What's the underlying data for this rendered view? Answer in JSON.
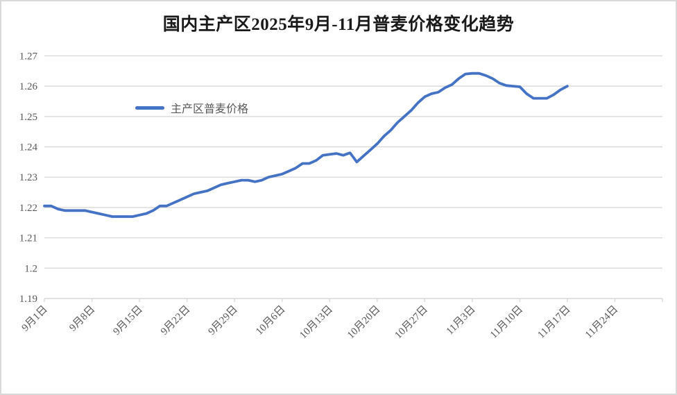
{
  "chart": {
    "title": "国内主产区2025年9月-11月普麦价格变化趋势",
    "legend_label": "主产区普麦价格"
  },
  "chart_data": {
    "type": "line",
    "title": "国内主产区2025年9月-11月普麦价格变化趋势",
    "xlabel": "",
    "ylabel": "",
    "ylim": [
      1.19,
      1.27
    ],
    "y_tick_labels": [
      "1.27",
      "1.26",
      "1.25",
      "1.24",
      "1.23",
      "1.22",
      "1.21",
      "1.2",
      "1.19"
    ],
    "x_tick_labels": [
      "9月1日",
      "9月8日",
      "9月15日",
      "9月22日",
      "9月29日",
      "10月6日",
      "10月13日",
      "10月20日",
      "10月27日",
      "11月3日",
      "11月10日",
      "11月17日",
      "11月24日"
    ],
    "x_tick_interval_days": 7,
    "grid": "horizontal",
    "legend_position": "inside-top-left",
    "colors": {
      "line": "#4472C4",
      "grid": "#d9d9d9",
      "axis": "#d9d9d9",
      "tick_text": "#595959",
      "title_text": "#1a1a1a",
      "border": "#d9d9d9"
    },
    "series": [
      {
        "name": "主产区普麦价格",
        "color": "#4472C4",
        "dates": [
          "9月1日",
          "9月2日",
          "9月3日",
          "9月4日",
          "9月5日",
          "9月6日",
          "9月7日",
          "9月8日",
          "9月9日",
          "9月10日",
          "9月11日",
          "9月12日",
          "9月13日",
          "9月14日",
          "9月15日",
          "9月16日",
          "9月17日",
          "9月18日",
          "9月19日",
          "9月20日",
          "9月21日",
          "9月22日",
          "9月23日",
          "9月24日",
          "9月25日",
          "9月26日",
          "9月27日",
          "9月28日",
          "9月29日",
          "9月30日",
          "10月1日",
          "10月2日",
          "10月3日",
          "10月4日",
          "10月5日",
          "10月6日",
          "10月7日",
          "10月8日",
          "10月9日",
          "10月10日",
          "10月11日",
          "10月12日",
          "10月13日",
          "10月14日",
          "10月15日",
          "10月16日",
          "10月17日",
          "10月18日",
          "10月19日",
          "10月20日",
          "10月21日",
          "10月22日",
          "10月23日",
          "10月24日",
          "10月25日",
          "10月26日",
          "10月27日",
          "10月28日",
          "10月29日",
          "10月30日",
          "10月31日",
          "11月1日",
          "11月2日",
          "11月3日",
          "11月4日",
          "11月5日",
          "11月6日",
          "11月7日",
          "11月8日",
          "11月9日",
          "11月10日",
          "11月11日",
          "11月12日",
          "11月13日",
          "11月14日",
          "11月15日",
          "11月16日",
          "11月17日"
        ],
        "values": [
          1.2205,
          1.2205,
          1.2195,
          1.219,
          1.219,
          1.219,
          1.219,
          1.2185,
          1.218,
          1.2175,
          1.217,
          1.217,
          1.217,
          1.217,
          1.2175,
          1.218,
          1.219,
          1.2205,
          1.2205,
          1.2215,
          1.2225,
          1.2235,
          1.2245,
          1.225,
          1.2255,
          1.2265,
          1.2275,
          1.228,
          1.2285,
          1.229,
          1.229,
          1.2285,
          1.229,
          1.23,
          1.2305,
          1.231,
          1.232,
          1.233,
          1.2345,
          1.2345,
          1.2355,
          1.2372,
          1.2375,
          1.2378,
          1.2372,
          1.238,
          1.235,
          1.237,
          1.239,
          1.241,
          1.2435,
          1.2455,
          1.248,
          1.25,
          1.252,
          1.2545,
          1.2565,
          1.2575,
          1.258,
          1.2595,
          1.2605,
          1.2625,
          1.264,
          1.2642,
          1.2642,
          1.2635,
          1.2625,
          1.261,
          1.2602,
          1.26,
          1.2598,
          1.2575,
          1.256,
          1.256,
          1.256,
          1.2572,
          1.2588,
          1.26
        ]
      }
    ]
  }
}
